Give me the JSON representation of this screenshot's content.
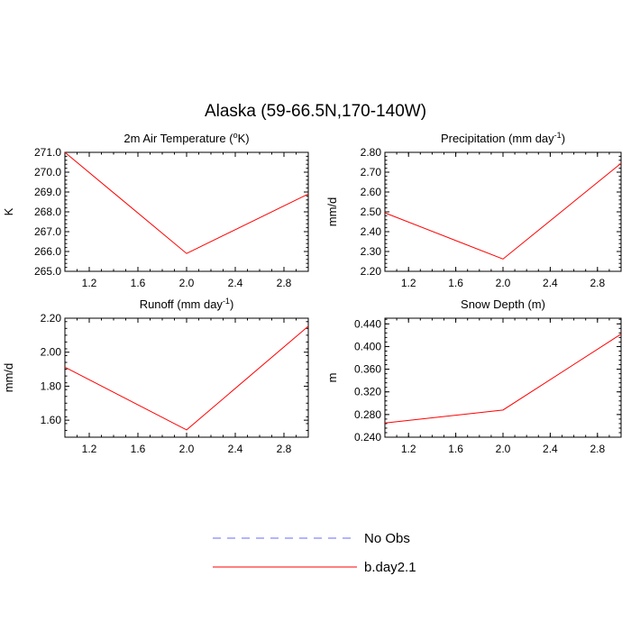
{
  "figure": {
    "title": "Alaska (59-66.5N,170-140W)"
  },
  "legend": {
    "entries": [
      {
        "label": "No Obs",
        "color": "#6a6aff",
        "dash": true
      },
      {
        "label": "b.day2.1",
        "color": "#ff0000",
        "dash": false
      }
    ]
  },
  "chart_data": [
    {
      "type": "line",
      "title": "2m Air Temperature (",
      "title_sup": "o",
      "title_tail": "K)",
      "xlabel": "",
      "ylabel": "K",
      "xlim": [
        1.0,
        3.0
      ],
      "ylim": [
        265.0,
        271.0
      ],
      "xticks": [
        1.2,
        1.6,
        2.0,
        2.4,
        2.8
      ],
      "xtick_labels": [
        "1.2",
        "1.6",
        "2.0",
        "2.4",
        "2.8"
      ],
      "yticks": [
        265.0,
        266.0,
        267.0,
        268.0,
        269.0,
        270.0,
        271.0
      ],
      "ytick_labels": [
        "265.0",
        "266.0",
        "267.0",
        "268.0",
        "269.0",
        "270.0",
        "271.0"
      ],
      "series": [
        {
          "name": "b.day2.1",
          "color": "#ff0000",
          "x": [
            1,
            2,
            3
          ],
          "values": [
            271.0,
            265.9,
            268.9
          ]
        }
      ]
    },
    {
      "type": "line",
      "title": "Precipitation (mm day",
      "title_sup": "-1",
      "title_tail": ")",
      "xlabel": "",
      "ylabel": "mm/d",
      "xlim": [
        1.0,
        3.0
      ],
      "ylim": [
        2.2,
        2.8
      ],
      "xticks": [
        1.2,
        1.6,
        2.0,
        2.4,
        2.8
      ],
      "xtick_labels": [
        "1.2",
        "1.6",
        "2.0",
        "2.4",
        "2.8"
      ],
      "yticks": [
        2.2,
        2.3,
        2.4,
        2.5,
        2.6,
        2.7,
        2.8
      ],
      "ytick_labels": [
        "2.20",
        "2.30",
        "2.40",
        "2.50",
        "2.60",
        "2.70",
        "2.80"
      ],
      "series": [
        {
          "name": "b.day2.1",
          "color": "#ff0000",
          "x": [
            1,
            2,
            3
          ],
          "values": [
            2.495,
            2.262,
            2.745
          ]
        }
      ]
    },
    {
      "type": "line",
      "title": "Runoff (mm day",
      "title_sup": "-1",
      "title_tail": ")",
      "xlabel": "",
      "ylabel": "mm/d",
      "xlim": [
        1.0,
        3.0
      ],
      "ylim": [
        1.5,
        2.2
      ],
      "xticks": [
        1.2,
        1.6,
        2.0,
        2.4,
        2.8
      ],
      "xtick_labels": [
        "1.2",
        "1.6",
        "2.0",
        "2.4",
        "2.8"
      ],
      "yticks": [
        1.6,
        1.8,
        2.0,
        2.2
      ],
      "ytick_labels": [
        "1.60",
        "1.80",
        "2.00",
        "2.20"
      ],
      "series": [
        {
          "name": "b.day2.1",
          "color": "#ff0000",
          "x": [
            1,
            2,
            3
          ],
          "values": [
            1.912,
            1.543,
            2.153
          ]
        }
      ]
    },
    {
      "type": "line",
      "title": "Snow Depth (m)",
      "title_sup": "",
      "title_tail": "",
      "xlabel": "",
      "ylabel": "m",
      "xlim": [
        1.0,
        3.0
      ],
      "ylim": [
        0.24,
        0.45
      ],
      "xticks": [
        1.2,
        1.6,
        2.0,
        2.4,
        2.8
      ],
      "xtick_labels": [
        "1.2",
        "1.6",
        "2.0",
        "2.4",
        "2.8"
      ],
      "yticks": [
        0.24,
        0.28,
        0.32,
        0.36,
        0.4,
        0.44
      ],
      "ytick_labels": [
        "0.240",
        "0.280",
        "0.320",
        "0.360",
        "0.400",
        "0.440"
      ],
      "series": [
        {
          "name": "b.day2.1",
          "color": "#ff0000",
          "x": [
            1,
            2,
            3
          ],
          "values": [
            0.265,
            0.288,
            0.422
          ]
        }
      ]
    }
  ]
}
